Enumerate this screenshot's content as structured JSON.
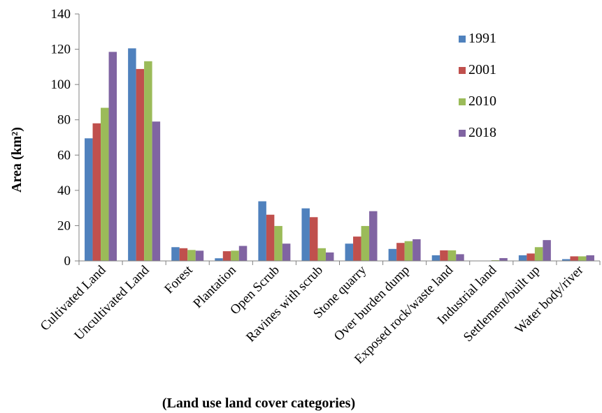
{
  "chart_data": {
    "type": "bar",
    "title": "",
    "xlabel": "(Land use land cover categories)",
    "ylabel": "Area (km²)",
    "ylim": [
      0,
      140
    ],
    "yticks": [
      0,
      20,
      40,
      60,
      80,
      100,
      120,
      140
    ],
    "grid": false,
    "legend_position": "top-right",
    "categories": [
      "Cultivated Land",
      "Uncultivated Land",
      "Forest",
      "Plantation",
      "Open Scrub",
      "Ravines with scrub",
      "Stone quarry",
      "Over burden dump",
      "Exposed rock/waste land",
      "Industrial land",
      "Settlement/built up",
      "Water body/river"
    ],
    "series": [
      {
        "name": "1991",
        "color": "#4f81bd",
        "values": [
          69.5,
          120.5,
          7.8,
          1.5,
          33.8,
          29.8,
          9.8,
          6.8,
          3.2,
          0,
          3.2,
          1.0
        ]
      },
      {
        "name": "2001",
        "color": "#c0504d",
        "values": [
          78.0,
          108.8,
          7.2,
          5.5,
          26.2,
          24.8,
          13.8,
          10.2,
          6.0,
          0,
          4.2,
          2.6
        ]
      },
      {
        "name": "2010",
        "color": "#9bbb59",
        "values": [
          86.8,
          113.2,
          6.2,
          5.8,
          19.8,
          7.2,
          19.8,
          11.2,
          6.0,
          0.4,
          7.8,
          2.6
        ]
      },
      {
        "name": "2018",
        "color": "#8064a2",
        "values": [
          118.5,
          79.0,
          5.8,
          8.5,
          9.8,
          4.8,
          28.2,
          12.3,
          3.8,
          1.6,
          11.8,
          3.2
        ]
      }
    ]
  }
}
